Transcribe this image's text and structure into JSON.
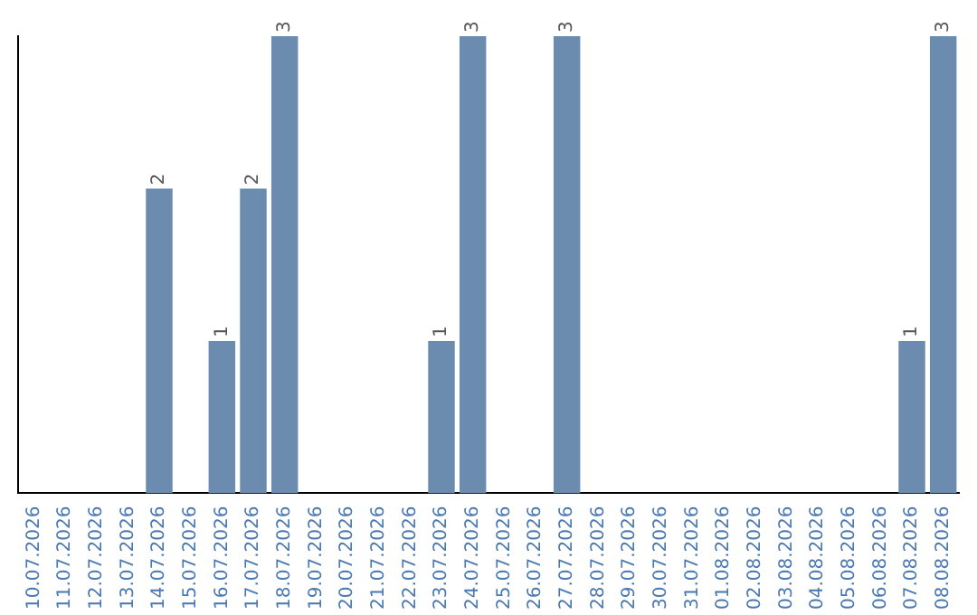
{
  "chart_data": {
    "type": "bar",
    "categories": [
      "10.07.2026",
      "11.07.2026",
      "12.07.2026",
      "13.07.2026",
      "14.07.2026",
      "15.07.2026",
      "16.07.2026",
      "17.07.2026",
      "18.07.2026",
      "19.07.2026",
      "20.07.2026",
      "21.07.2026",
      "22.07.2026",
      "23.07.2026",
      "24.07.2026",
      "25.07.2026",
      "26.07.2026",
      "27.07.2026",
      "28.07.2026",
      "29.07.2026",
      "30.07.2026",
      "31.07.2026",
      "01.08.2026",
      "02.08.2026",
      "03.08.2026",
      "04.08.2026",
      "05.08.2026",
      "06.08.2026",
      "07.08.2026",
      "08.08.2026"
    ],
    "values": [
      0,
      0,
      0,
      0,
      2,
      0,
      1,
      2,
      3,
      0,
      0,
      0,
      0,
      1,
      3,
      0,
      0,
      3,
      0,
      0,
      0,
      0,
      0,
      0,
      0,
      0,
      0,
      0,
      1,
      3
    ],
    "value_labels": [
      null,
      null,
      null,
      null,
      "2",
      null,
      "1",
      "2",
      "3",
      null,
      null,
      null,
      null,
      "1",
      "3",
      null,
      null,
      "3",
      null,
      null,
      null,
      null,
      null,
      null,
      null,
      null,
      null,
      null,
      "1",
      "3"
    ],
    "color": "#6b8cae",
    "grid": false,
    "legend": false,
    "tick_labels": "x"
  }
}
